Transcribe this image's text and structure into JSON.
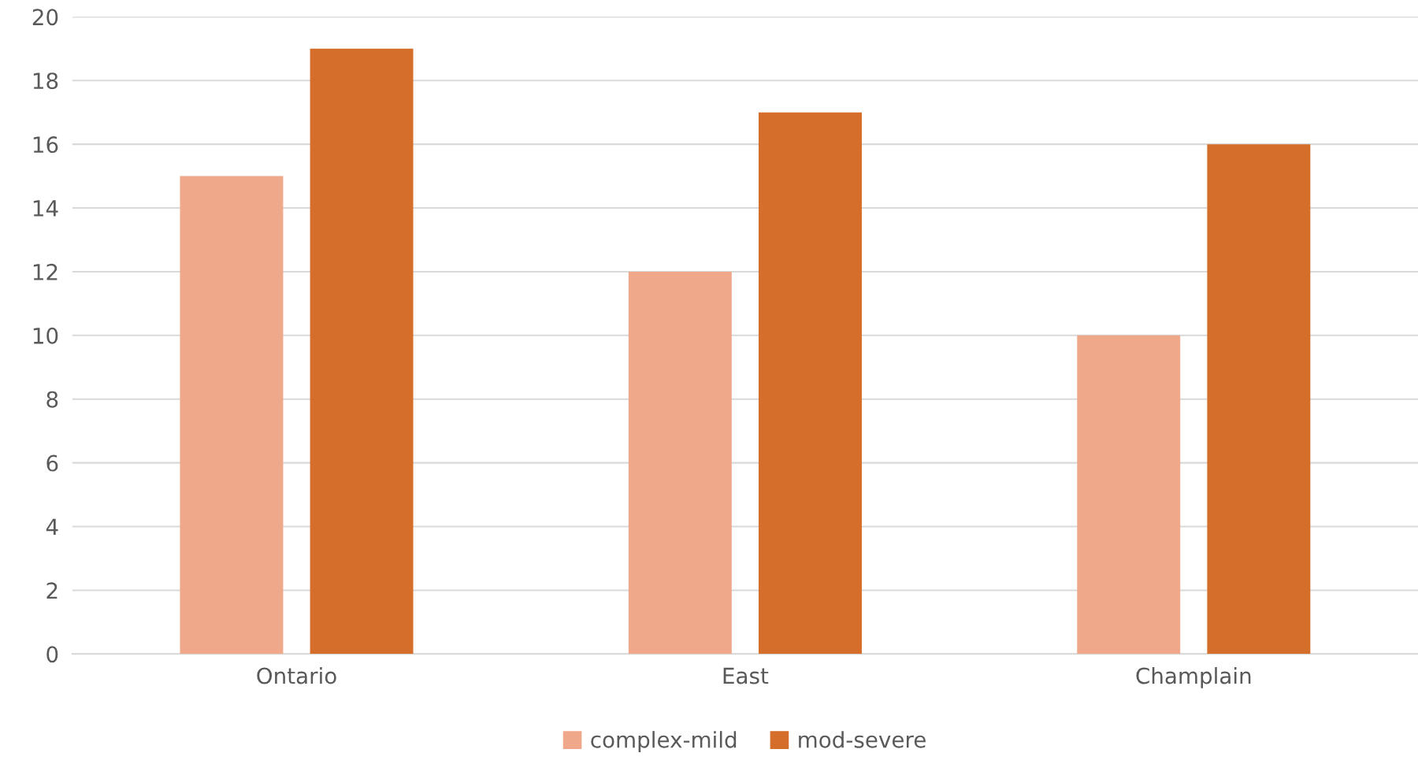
{
  "chart_data": {
    "type": "bar",
    "categories": [
      "Ontario",
      "East",
      "Champlain"
    ],
    "series": [
      {
        "name": "complex-mild",
        "color": "#f0a88b",
        "values": [
          15,
          12,
          10
        ]
      },
      {
        "name": "mod-severe",
        "color": "#d46e2a",
        "values": [
          19,
          17,
          16
        ]
      }
    ],
    "ylim": [
      0,
      20
    ],
    "yticks": [
      0,
      2,
      4,
      6,
      8,
      10,
      12,
      14,
      16,
      18,
      20
    ],
    "grid": "y",
    "legend": "bottom"
  }
}
